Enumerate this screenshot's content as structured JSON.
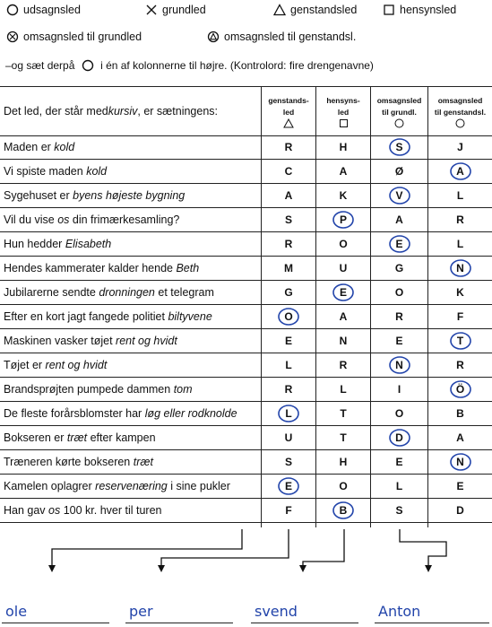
{
  "legend": {
    "row1": [
      {
        "symbol": "circle",
        "label": "udsagnsled"
      },
      {
        "symbol": "x",
        "label": "grundled"
      },
      {
        "symbol": "triangle",
        "label": "genstandsled"
      },
      {
        "symbol": "square",
        "label": "hensynsled"
      }
    ],
    "row2": [
      {
        "symbol": "circle-x",
        "label": "omsagnsled til grundled"
      },
      {
        "symbol": "circle-triangle",
        "label": "omsagnsled til genstandsl."
      }
    ]
  },
  "instruction": {
    "before": "–og sæt derpå",
    "after": "i én af kolonnerne til højre. (Kontrolord: fire drengenavne)"
  },
  "table": {
    "header": {
      "question": "Det led, der står med kursiv, er sætningens:",
      "question_plain": "Det led, der står med ",
      "question_italic": "kursiv",
      "question_end": ", er sætningens:",
      "col1_line1": "genstands-",
      "col1_line2": "led",
      "col2_line1": "hensyns-",
      "col2_line2": "led",
      "col3_line1": "omsagnsled",
      "col3_line2": "til grundl.",
      "col4_line1": "omsagnsled",
      "col4_line2": "til genstandsl."
    },
    "rows": [
      {
        "pre": "Maden er ",
        "ital": "kold",
        "post": "",
        "letters": [
          "R",
          "H",
          "S",
          "J"
        ],
        "circled": 2
      },
      {
        "pre": "Vi spiste maden ",
        "ital": "kold",
        "post": "",
        "letters": [
          "C",
          "A",
          "Ø",
          "A"
        ],
        "circled": 3
      },
      {
        "pre": "Sygehuset er ",
        "ital": "byens højeste bygning",
        "post": "",
        "letters": [
          "A",
          "K",
          "V",
          "L"
        ],
        "circled": 2
      },
      {
        "pre": "Vil du vise ",
        "ital": "os",
        "post": " din frimærkesamling?",
        "letters": [
          "S",
          "P",
          "A",
          "R"
        ],
        "circled": 1
      },
      {
        "pre": "Hun hedder ",
        "ital": "Elisabeth",
        "post": "",
        "letters": [
          "R",
          "O",
          "E",
          "L"
        ],
        "circled": 2
      },
      {
        "pre": "Hendes kammerater kalder hende ",
        "ital": "Beth",
        "post": "",
        "letters": [
          "M",
          "U",
          "G",
          "N"
        ],
        "circled": 3
      },
      {
        "pre": "Jubilarerne sendte ",
        "ital": "dronningen",
        "post": " et telegram",
        "letters": [
          "G",
          "E",
          "O",
          "K"
        ],
        "circled": 1
      },
      {
        "pre": "Efter en kort jagt fangede politiet ",
        "ital": "biltyvene",
        "post": "",
        "letters": [
          "O",
          "A",
          "R",
          "F"
        ],
        "circled": 0
      },
      {
        "pre": "Maskinen vasker tøjet ",
        "ital": "rent og hvidt",
        "post": "",
        "letters": [
          "E",
          "N",
          "E",
          "T"
        ],
        "circled": 3
      },
      {
        "pre": "Tøjet er ",
        "ital": "rent og hvidt",
        "post": "",
        "letters": [
          "L",
          "R",
          "N",
          "R"
        ],
        "circled": 2
      },
      {
        "pre": "Brandsprøjten pumpede dammen ",
        "ital": "tom",
        "post": "",
        "letters": [
          "R",
          "L",
          "I",
          "Ö"
        ],
        "circled": 3
      },
      {
        "pre": "De fleste forårsblomster har ",
        "ital": "løg eller rodknolde",
        "post": "",
        "letters": [
          "L",
          "T",
          "O",
          "B"
        ],
        "circled": 0
      },
      {
        "pre": "Bokseren er ",
        "ital": "træt",
        "post": " efter kampen",
        "letters": [
          "U",
          "T",
          "D",
          "A"
        ],
        "circled": 2
      },
      {
        "pre": "Træneren kørte bokseren ",
        "ital": "træt",
        "post": "",
        "letters": [
          "S",
          "H",
          "E",
          "N"
        ],
        "circled": 3
      },
      {
        "pre": "Kamelen oplagrer ",
        "ital": "reservenæring",
        "post": " i sine pukler",
        "letters": [
          "E",
          "O",
          "L",
          "E"
        ],
        "circled": 0
      },
      {
        "pre": "Han gav ",
        "ital": "os",
        "post": " 100 kr. hver til turen",
        "letters": [
          "F",
          "B",
          "S",
          "D"
        ],
        "circled": 1
      }
    ]
  },
  "answers": [
    "ole",
    "per",
    "svend",
    "Anton"
  ],
  "colors": {
    "ink": "#111111",
    "pen": "#2244aa"
  }
}
